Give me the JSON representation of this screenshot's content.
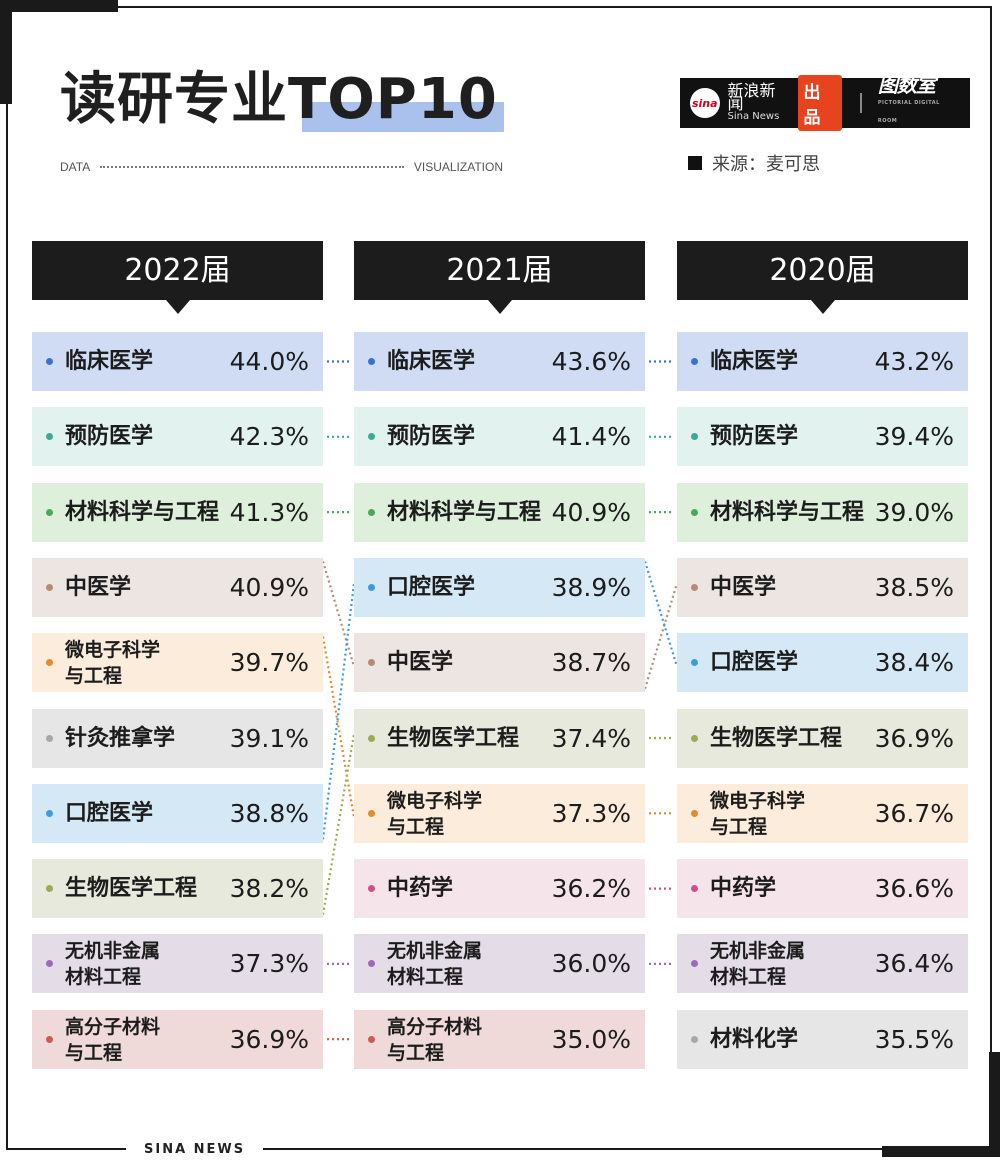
{
  "header": {
    "title": "读研专业TOP10",
    "sub_left": "DATA",
    "sub_right": "VISUALIZATION",
    "source": "来源：麦可思",
    "logo": {
      "mark": "sina",
      "cn": "新浪新闻",
      "en": "Sina News",
      "badge": "出品",
      "brand": "图数室",
      "brand_en": "PICTORIAL DIGITAL ROOM"
    }
  },
  "footer": {
    "label": "SINA NEWS"
  },
  "colors": {
    "临床医学": "#cfdcf4",
    "预防医学": "#e2f2ef",
    "材料科学与工程": "#deefdc",
    "中医学": "#ece5e1",
    "微电子科学与工程": "#fbecdb",
    "针灸推拿学": "#e6e6e6",
    "口腔医学": "#d5e8f5",
    "生物医学工程": "#e6e9dc",
    "中药学": "#f5e4ea",
    "无机非金属材料工程": "#e4dde8",
    "高分子材料与工程": "#efd9d9",
    "材料化学": "#e6e6e6"
  },
  "dot_colors": {
    "临床医学": "#3b6fd6",
    "预防医学": "#3aa99a",
    "材料科学与工程": "#49a85a",
    "中医学": "#b78a74",
    "微电子科学与工程": "#e48a2c",
    "针灸推拿学": "#a8a8a8",
    "口腔医学": "#3d9be0",
    "生物医学工程": "#98ab55",
    "中药学": "#d44d8a",
    "无机非金属材料工程": "#9d69b8",
    "高分子材料与工程": "#d05a52",
    "材料化学": "#a8a8a8"
  },
  "chart_data": {
    "type": "table",
    "title": "读研专业TOP10",
    "columns": [
      "2022届",
      "2021届",
      "2020届"
    ],
    "rankings": [
      [
        {
          "name": "临床医学",
          "line1": "临床医学",
          "line2": "",
          "value": "44.0%"
        },
        {
          "name": "预防医学",
          "line1": "预防医学",
          "line2": "",
          "value": "42.3%"
        },
        {
          "name": "材料科学与工程",
          "line1": "材料科学与工程",
          "line2": "",
          "value": "41.3%"
        },
        {
          "name": "中医学",
          "line1": "中医学",
          "line2": "",
          "value": "40.9%"
        },
        {
          "name": "微电子科学与工程",
          "line1": "微电子科学",
          "line2": "与工程",
          "value": "39.7%"
        },
        {
          "name": "针灸推拿学",
          "line1": "针灸推拿学",
          "line2": "",
          "value": "39.1%"
        },
        {
          "name": "口腔医学",
          "line1": "口腔医学",
          "line2": "",
          "value": "38.8%"
        },
        {
          "name": "生物医学工程",
          "line1": "生物医学工程",
          "line2": "",
          "value": "38.2%"
        },
        {
          "name": "无机非金属材料工程",
          "line1": "无机非金属",
          "line2": "材料工程",
          "value": "37.3%"
        },
        {
          "name": "高分子材料与工程",
          "line1": "高分子材料",
          "line2": "与工程",
          "value": "36.9%"
        }
      ],
      [
        {
          "name": "临床医学",
          "line1": "临床医学",
          "line2": "",
          "value": "43.6%"
        },
        {
          "name": "预防医学",
          "line1": "预防医学",
          "line2": "",
          "value": "41.4%"
        },
        {
          "name": "材料科学与工程",
          "line1": "材料科学与工程",
          "line2": "",
          "value": "40.9%"
        },
        {
          "name": "口腔医学",
          "line1": "口腔医学",
          "line2": "",
          "value": "38.9%"
        },
        {
          "name": "中医学",
          "line1": "中医学",
          "line2": "",
          "value": "38.7%"
        },
        {
          "name": "生物医学工程",
          "line1": "生物医学工程",
          "line2": "",
          "value": "37.4%"
        },
        {
          "name": "微电子科学与工程",
          "line1": "微电子科学",
          "line2": "与工程",
          "value": "37.3%"
        },
        {
          "name": "中药学",
          "line1": "中药学",
          "line2": "",
          "value": "36.2%"
        },
        {
          "name": "无机非金属材料工程",
          "line1": "无机非金属",
          "line2": "材料工程",
          "value": "36.0%"
        },
        {
          "name": "高分子材料与工程",
          "line1": "高分子材料",
          "line2": "与工程",
          "value": "35.0%"
        }
      ],
      [
        {
          "name": "临床医学",
          "line1": "临床医学",
          "line2": "",
          "value": "43.2%"
        },
        {
          "name": "预防医学",
          "line1": "预防医学",
          "line2": "",
          "value": "39.4%"
        },
        {
          "name": "材料科学与工程",
          "line1": "材料科学与工程",
          "line2": "",
          "value": "39.0%"
        },
        {
          "name": "中医学",
          "line1": "中医学",
          "line2": "",
          "value": "38.5%"
        },
        {
          "name": "口腔医学",
          "line1": "口腔医学",
          "line2": "",
          "value": "38.4%"
        },
        {
          "name": "生物医学工程",
          "line1": "生物医学工程",
          "line2": "",
          "value": "36.9%"
        },
        {
          "name": "微电子科学与工程",
          "line1": "微电子科学",
          "line2": "与工程",
          "value": "36.7%"
        },
        {
          "name": "中药学",
          "line1": "中药学",
          "line2": "",
          "value": "36.6%"
        },
        {
          "name": "无机非金属材料工程",
          "line1": "无机非金属",
          "line2": "材料工程",
          "value": "36.4%"
        },
        {
          "name": "材料化学",
          "line1": "材料化学",
          "line2": "",
          "value": "35.5%"
        }
      ]
    ]
  }
}
